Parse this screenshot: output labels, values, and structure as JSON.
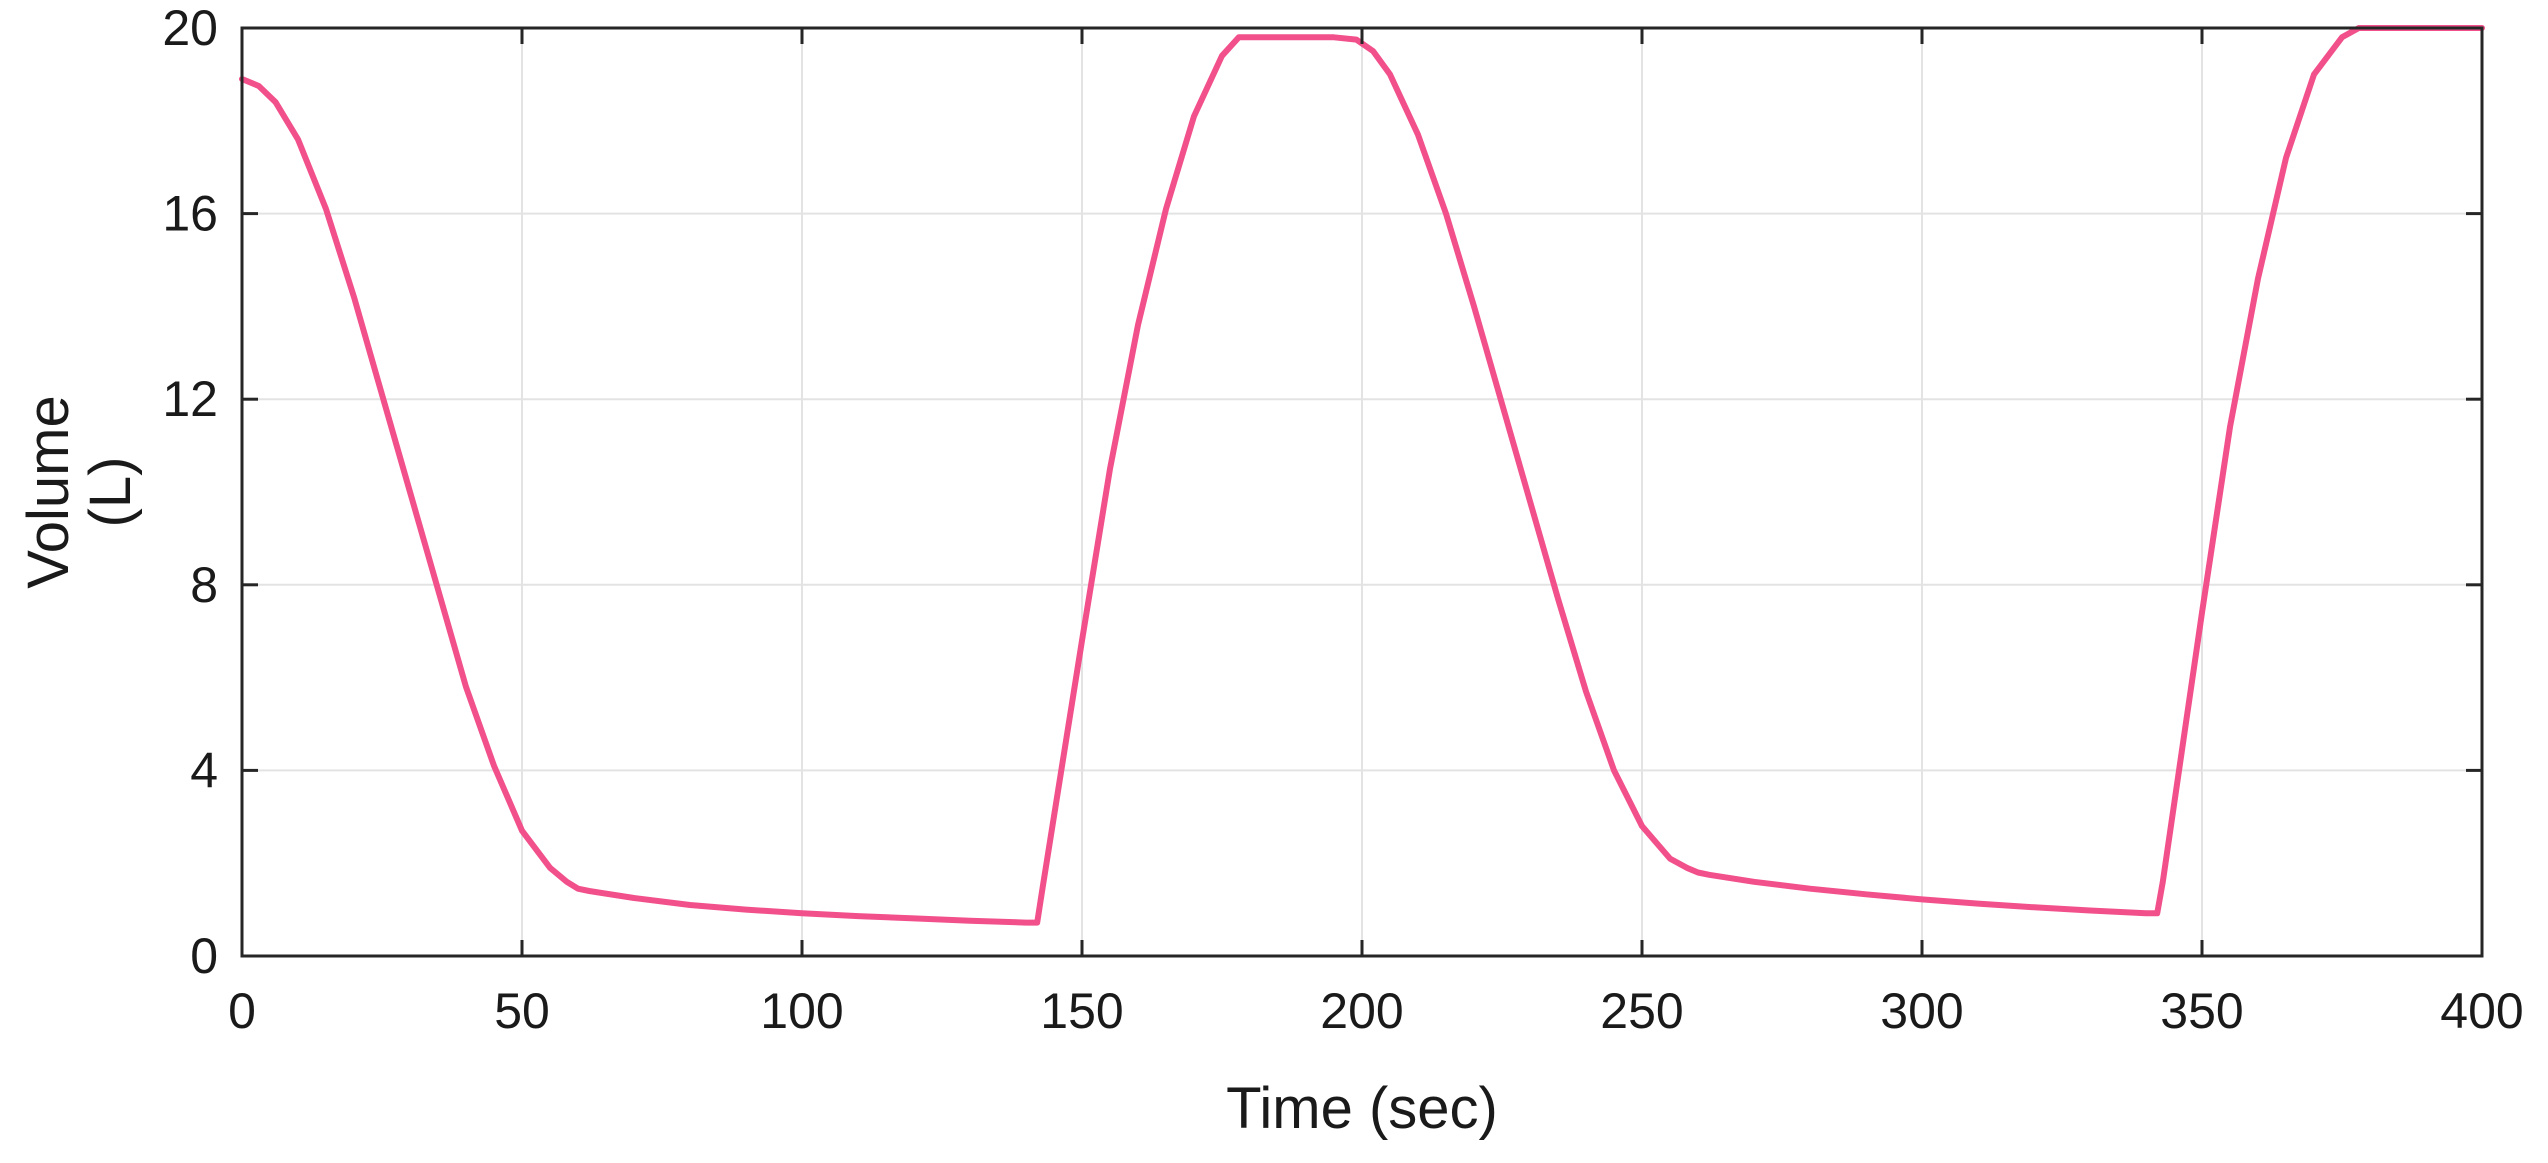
{
  "chart_data": {
    "type": "line",
    "title": "",
    "xlabel": "Time (sec)",
    "ylabel_lines": [
      "Volume",
      "(L)"
    ],
    "xlim": [
      0,
      400
    ],
    "ylim": [
      0,
      20
    ],
    "xticks": [
      0,
      50,
      100,
      150,
      200,
      250,
      300,
      350,
      400
    ],
    "yticks": [
      0,
      4,
      8,
      12,
      16,
      20
    ],
    "xtick_labels": [
      "0",
      "50",
      "100",
      "150",
      "200",
      "250",
      "300",
      "350",
      "400"
    ],
    "ytick_labels": [
      "0",
      "4",
      "8",
      "12",
      "16",
      "20"
    ],
    "grid": true,
    "legend": false,
    "line_color": "#f2508a",
    "series": [
      {
        "x": [
          0,
          3,
          6,
          10,
          15,
          20,
          25,
          30,
          35,
          40,
          45,
          50,
          55,
          58,
          60,
          62,
          70,
          80,
          90,
          100,
          110,
          120,
          130,
          140,
          142,
          143,
          150,
          155,
          160,
          165,
          170,
          175,
          178,
          180,
          185,
          190,
          195,
          199,
          202,
          205,
          210,
          215,
          220,
          225,
          230,
          235,
          240,
          245,
          250,
          255,
          258,
          260,
          262,
          270,
          280,
          290,
          300,
          310,
          320,
          330,
          340,
          342,
          343,
          350,
          355,
          360,
          365,
          370,
          375,
          378,
          380,
          390,
          400
        ],
        "y": [
          18.9,
          18.75,
          18.4,
          17.6,
          16.1,
          14.2,
          12.1,
          10.0,
          7.9,
          5.8,
          4.1,
          2.7,
          1.9,
          1.6,
          1.45,
          1.4,
          1.25,
          1.1,
          1.0,
          0.92,
          0.86,
          0.81,
          0.76,
          0.72,
          0.72,
          1.5,
          6.8,
          10.5,
          13.6,
          16.1,
          18.1,
          19.4,
          19.8,
          19.8,
          19.8,
          19.8,
          19.8,
          19.75,
          19.5,
          19.0,
          17.7,
          16.0,
          14.0,
          11.9,
          9.8,
          7.7,
          5.7,
          4.0,
          2.8,
          2.1,
          1.9,
          1.8,
          1.75,
          1.6,
          1.45,
          1.33,
          1.22,
          1.13,
          1.05,
          0.98,
          0.92,
          0.92,
          1.6,
          7.4,
          11.4,
          14.6,
          17.2,
          19.0,
          19.8,
          20.0,
          20.0,
          20.0,
          20.0
        ]
      }
    ]
  }
}
